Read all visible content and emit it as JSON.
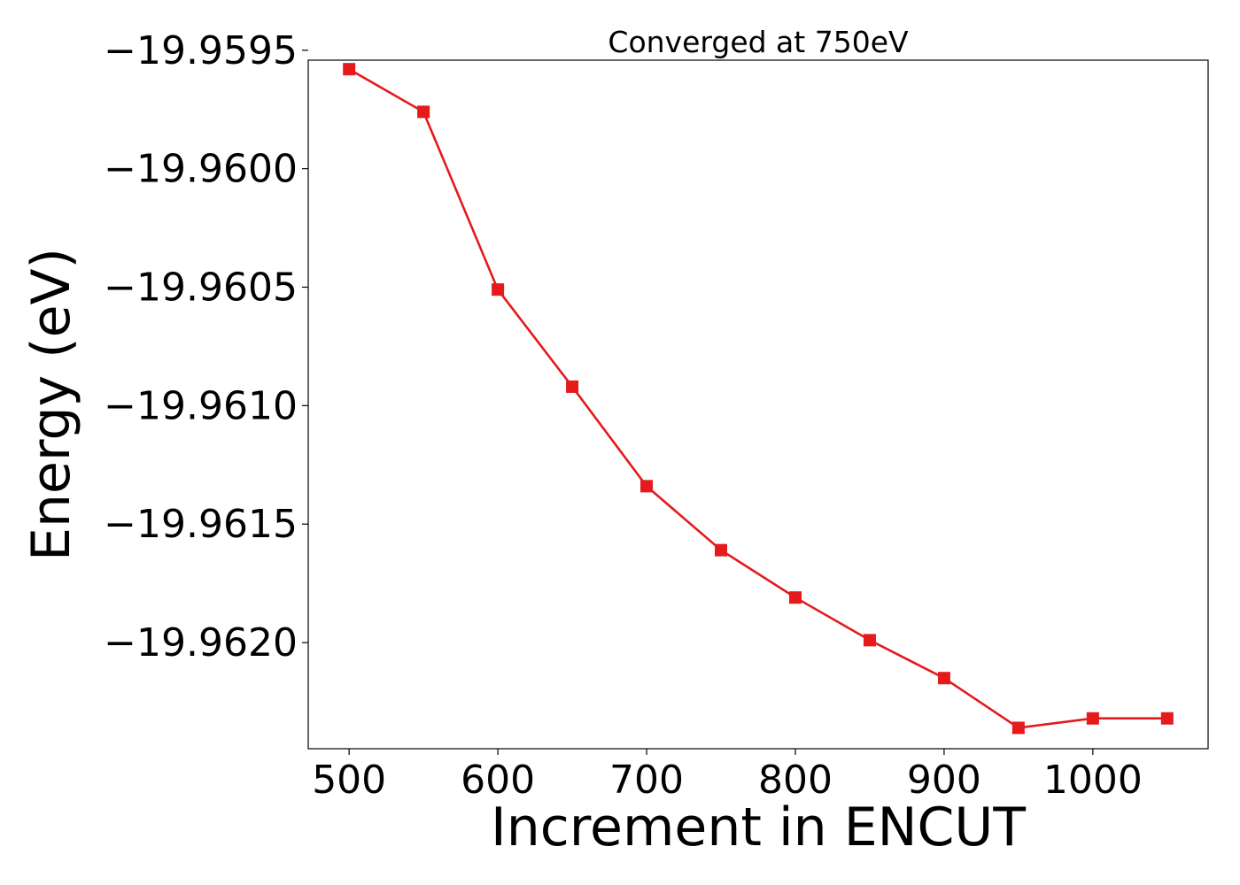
{
  "chart_data": {
    "type": "line",
    "title": "Converged at 750eV",
    "xlabel": "Increment in ENCUT",
    "ylabel": "Energy (eV)",
    "x": [
      500,
      550,
      600,
      650,
      700,
      750,
      800,
      850,
      900,
      950,
      1000,
      1050
    ],
    "series": [
      {
        "values": [
          -19.95958,
          -19.95976,
          -19.96051,
          -19.96092,
          -19.96134,
          -19.96161,
          -19.96181,
          -19.96199,
          -19.96215,
          -19.96236,
          -19.96232,
          -19.96232
        ],
        "color": "#e41a1c",
        "marker": "square"
      }
    ],
    "xlim": [
      472.5,
      1077.5
    ],
    "ylim": [
      -19.962448,
      -19.959542
    ],
    "xticks": [
      500,
      600,
      700,
      800,
      900,
      1000
    ],
    "xtick_labels": [
      "500",
      "600",
      "700",
      "800",
      "900",
      "1000"
    ],
    "yticks": [
      -19.9595,
      -19.96,
      -19.9605,
      -19.961,
      -19.9615,
      -19.962
    ],
    "ytick_labels": [
      "−19.9595",
      "−19.9600",
      "−19.9605",
      "−19.9610",
      "−19.9615",
      "−19.9620"
    ],
    "grid": false,
    "legend": "none"
  }
}
